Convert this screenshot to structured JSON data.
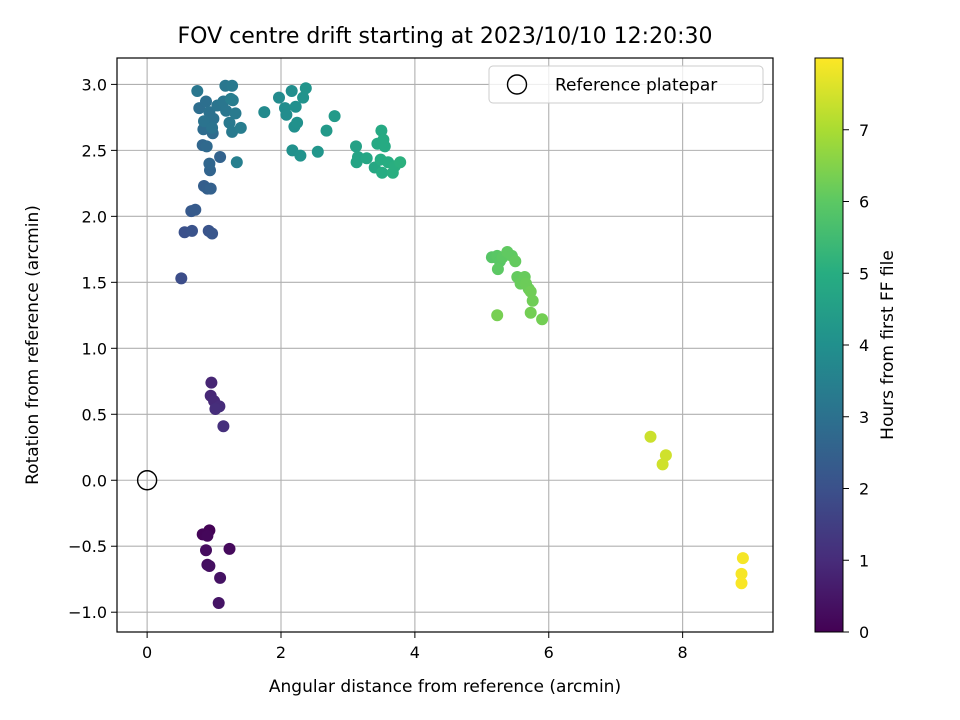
{
  "chart_data": {
    "type": "scatter",
    "title": "FOV centre drift starting at 2023/10/10 12:20:30",
    "xlabel": "Angular distance from reference (arcmin)",
    "ylabel": "Rotation from reference (arcmin)",
    "xlim": [
      -0.45,
      9.35
    ],
    "ylim": [
      -1.15,
      3.2
    ],
    "x_ticks": [
      0,
      2,
      4,
      6,
      8
    ],
    "x_tick_labels": [
      "0",
      "2",
      "4",
      "6",
      "8"
    ],
    "y_ticks": [
      -1.0,
      -0.5,
      0.0,
      0.5,
      1.0,
      1.5,
      2.0,
      2.5,
      3.0
    ],
    "y_tick_labels": [
      "−1.0",
      "−0.5",
      "0.0",
      "0.5",
      "1.0",
      "1.5",
      "2.0",
      "2.5",
      "3.0"
    ],
    "grid": true,
    "legend": {
      "placement": "top-right",
      "entries": [
        "Reference platepar"
      ]
    },
    "reference_point": {
      "x": 0.0,
      "y": 0.0,
      "label": "Reference platepar"
    },
    "colorbar": {
      "label": "Hours from first FF file",
      "colormap": "viridis",
      "range": [
        0,
        8
      ],
      "ticks": [
        0,
        1,
        2,
        3,
        4,
        5,
        6,
        7
      ],
      "tick_labels": [
        "0",
        "1",
        "2",
        "3",
        "4",
        "5",
        "6",
        "7"
      ]
    },
    "point_fields": [
      "x",
      "y",
      "hours"
    ],
    "points": [
      [
        0.93,
        -0.38,
        0.05
      ],
      [
        0.83,
        -0.41,
        0.1
      ],
      [
        0.9,
        -0.42,
        0.15
      ],
      [
        1.23,
        -0.52,
        0.2
      ],
      [
        0.88,
        -0.53,
        0.25
      ],
      [
        0.9,
        -0.64,
        0.3
      ],
      [
        0.93,
        -0.65,
        0.35
      ],
      [
        1.09,
        -0.74,
        0.4
      ],
      [
        1.07,
        -0.93,
        0.45
      ],
      [
        0.96,
        0.74,
        0.85
      ],
      [
        0.95,
        0.64,
        0.9
      ],
      [
        1.0,
        0.6,
        0.95
      ],
      [
        1.08,
        0.56,
        1.0
      ],
      [
        1.02,
        0.54,
        1.05
      ],
      [
        1.14,
        0.41,
        1.1
      ],
      [
        0.51,
        1.53,
        1.9
      ],
      [
        0.56,
        1.88,
        2.0
      ],
      [
        0.67,
        1.89,
        2.05
      ],
      [
        0.92,
        1.89,
        2.1
      ],
      [
        0.97,
        1.87,
        2.15
      ],
      [
        0.66,
        2.04,
        2.25
      ],
      [
        0.72,
        2.05,
        2.3
      ],
      [
        0.85,
        2.23,
        2.4
      ],
      [
        0.9,
        2.21,
        2.45
      ],
      [
        0.95,
        2.21,
        2.5
      ],
      [
        1.09,
        2.45,
        2.55
      ],
      [
        0.94,
        2.35,
        2.6
      ],
      [
        0.93,
        2.4,
        2.65
      ],
      [
        0.83,
        2.54,
        2.7
      ],
      [
        0.89,
        2.53,
        2.75
      ],
      [
        0.98,
        2.63,
        2.8
      ],
      [
        0.84,
        2.66,
        2.85
      ],
      [
        0.78,
        2.82,
        2.9
      ],
      [
        0.88,
        2.87,
        2.95
      ],
      [
        0.93,
        2.79,
        3.0
      ],
      [
        0.99,
        2.74,
        3.0
      ],
      [
        0.85,
        2.72,
        3.05
      ],
      [
        0.97,
        2.67,
        3.05
      ],
      [
        1.05,
        2.84,
        3.1
      ],
      [
        1.14,
        2.87,
        3.15
      ],
      [
        1.18,
        2.8,
        3.15
      ],
      [
        0.75,
        2.95,
        3.2
      ],
      [
        1.17,
        2.99,
        3.2
      ],
      [
        1.27,
        2.99,
        3.25
      ],
      [
        1.23,
        2.71,
        3.25
      ],
      [
        1.27,
        2.64,
        3.3
      ],
      [
        1.32,
        2.78,
        3.3
      ],
      [
        1.28,
        2.88,
        3.35
      ],
      [
        1.4,
        2.67,
        3.4
      ],
      [
        1.34,
        2.41,
        3.45
      ],
      [
        1.25,
        2.89,
        3.4
      ],
      [
        1.75,
        2.79,
        3.8
      ],
      [
        1.97,
        2.9,
        3.85
      ],
      [
        2.06,
        2.82,
        3.9
      ],
      [
        2.08,
        2.77,
        3.9
      ],
      [
        2.16,
        2.95,
        3.95
      ],
      [
        2.22,
        2.83,
        4.0
      ],
      [
        2.2,
        2.68,
        4.0
      ],
      [
        2.24,
        2.71,
        4.05
      ],
      [
        2.17,
        2.5,
        4.05
      ],
      [
        2.29,
        2.46,
        4.1
      ],
      [
        2.33,
        2.9,
        4.1
      ],
      [
        2.37,
        2.97,
        4.15
      ],
      [
        2.55,
        2.49,
        4.2
      ],
      [
        2.68,
        2.65,
        4.3
      ],
      [
        2.8,
        2.76,
        4.35
      ],
      [
        3.12,
        2.53,
        4.6
      ],
      [
        3.15,
        2.45,
        4.65
      ],
      [
        3.13,
        2.41,
        4.7
      ],
      [
        3.28,
        2.44,
        4.75
      ],
      [
        3.4,
        2.37,
        4.8
      ],
      [
        3.44,
        2.55,
        4.85
      ],
      [
        3.5,
        2.65,
        4.85
      ],
      [
        3.53,
        2.58,
        4.9
      ],
      [
        3.55,
        2.53,
        4.9
      ],
      [
        3.49,
        2.43,
        4.95
      ],
      [
        3.51,
        2.33,
        4.95
      ],
      [
        3.6,
        2.41,
        5.0
      ],
      [
        3.67,
        2.33,
        5.05
      ],
      [
        3.7,
        2.38,
        5.05
      ],
      [
        3.78,
        2.41,
        5.1
      ],
      [
        5.15,
        1.69,
        5.9
      ],
      [
        5.23,
        1.7,
        5.95
      ],
      [
        5.27,
        1.66,
        5.95
      ],
      [
        5.24,
        1.6,
        6.0
      ],
      [
        5.31,
        1.69,
        6.0
      ],
      [
        5.38,
        1.73,
        6.05
      ],
      [
        5.45,
        1.7,
        6.05
      ],
      [
        5.5,
        1.66,
        6.1
      ],
      [
        5.53,
        1.54,
        6.1
      ],
      [
        5.58,
        1.49,
        6.15
      ],
      [
        5.64,
        1.54,
        6.15
      ],
      [
        5.66,
        1.49,
        6.2
      ],
      [
        5.7,
        1.45,
        6.2
      ],
      [
        5.73,
        1.43,
        6.25
      ],
      [
        5.76,
        1.36,
        6.25
      ],
      [
        5.73,
        1.27,
        6.3
      ],
      [
        5.9,
        1.22,
        6.3
      ],
      [
        5.23,
        1.25,
        6.35
      ],
      [
        7.52,
        0.33,
        7.4
      ],
      [
        7.7,
        0.12,
        7.45
      ],
      [
        7.75,
        0.19,
        7.45
      ],
      [
        8.9,
        -0.59,
        7.9
      ],
      [
        8.88,
        -0.71,
        7.92
      ],
      [
        8.88,
        -0.78,
        7.95
      ]
    ]
  }
}
